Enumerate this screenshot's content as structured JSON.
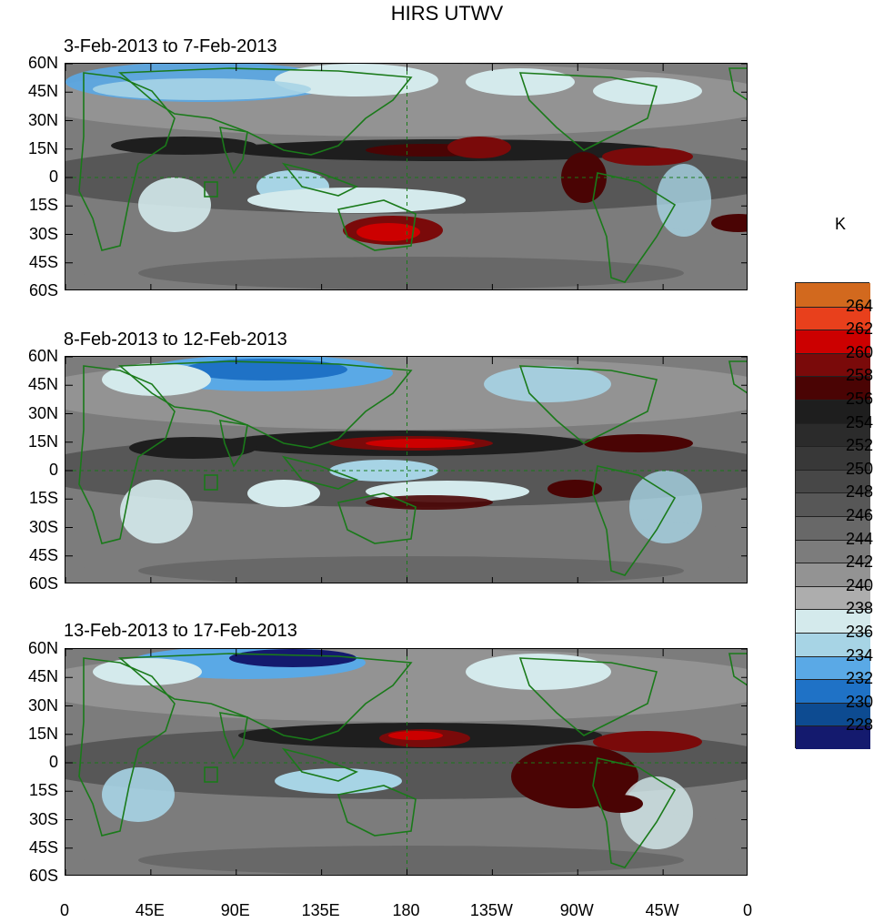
{
  "title": "HIRS UTWV",
  "unit_label": "K",
  "panels": [
    {
      "title": "3-Feb-2013 to 7-Feb-2013"
    },
    {
      "title": "8-Feb-2013 to 12-Feb-2013"
    },
    {
      "title": "13-Feb-2013 to 17-Feb-2013"
    }
  ],
  "lat_labels": [
    "60N",
    "45N",
    "30N",
    "15N",
    "0",
    "15S",
    "30S",
    "45S",
    "60S"
  ],
  "lon_labels": [
    "0",
    "45E",
    "90E",
    "135E",
    "180",
    "135W",
    "90W",
    "45W",
    "0"
  ],
  "colorbar": {
    "labels": [
      "264",
      "262",
      "260",
      "258",
      "256",
      "254",
      "252",
      "250",
      "248",
      "246",
      "244",
      "242",
      "240",
      "238",
      "236",
      "234",
      "232",
      "230",
      "228"
    ],
    "colors": [
      "#d2691e",
      "#e8401c",
      "#cc0000",
      "#7a0a0a",
      "#4a0404",
      "#1e1e1e",
      "#2b2b2b",
      "#383838",
      "#474747",
      "#575757",
      "#686868",
      "#7c7c7c",
      "#939393",
      "#adadad",
      "#d4eaec",
      "#a7d4e5",
      "#5aa9e6",
      "#1f72c6",
      "#0d4b91",
      "#141a6e"
    ]
  },
  "colors": {
    "coastline": "#1a7a1a",
    "background_gray": "#7c7c7c"
  }
}
